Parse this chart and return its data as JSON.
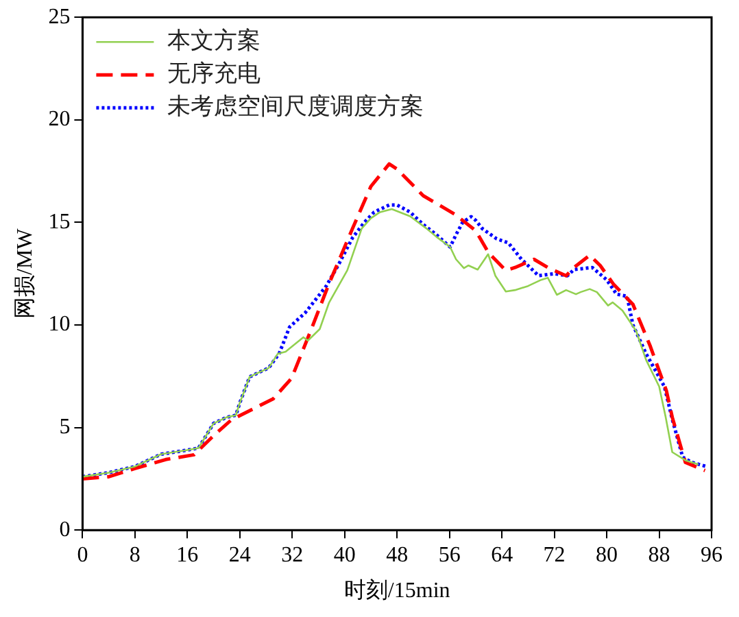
{
  "chart_data": {
    "type": "line",
    "xlabel": "时刻/15min",
    "ylabel": "网损/MW",
    "xlim": [
      0,
      96
    ],
    "xticks": [
      0,
      8,
      16,
      24,
      32,
      40,
      48,
      56,
      64,
      72,
      80,
      88,
      96
    ],
    "ylim": [
      0,
      25
    ],
    "yticks": [
      0,
      5,
      10,
      15,
      20,
      25
    ],
    "grid": false,
    "legend": "top left",
    "marker": "none",
    "series": [
      {
        "name": "本文方案",
        "color": "#92d050",
        "line_style": "solid",
        "x": [
          0,
          4,
          8,
          12,
          16,
          17.7,
          20,
          22,
          23.4,
          24,
          25.5,
          27,
          28.4,
          29.8,
          31,
          33.7,
          34.4,
          36.2,
          37.6,
          40.4,
          42.6,
          44,
          45.4,
          47.2,
          50,
          52.5,
          54,
          56.1,
          57,
          58.2,
          58.9,
          60.3,
          61.9,
          63,
          64.6,
          66,
          68,
          70,
          71,
          72.4,
          73.8,
          75.3,
          76,
          77.4,
          78.5,
          80.2,
          80.9,
          82.4,
          84.5,
          86,
          88,
          89,
          90,
          92,
          94
        ],
        "values": [
          2.6,
          2.8,
          3.1,
          3.7,
          3.9,
          4.0,
          5.2,
          5.5,
          5.6,
          6.2,
          7.47,
          7.7,
          7.9,
          8.6,
          8.7,
          9.4,
          9.24,
          9.8,
          11.07,
          12.66,
          14.7,
          15.2,
          15.5,
          15.65,
          15.3,
          14.7,
          14.3,
          13.8,
          13.2,
          12.77,
          12.9,
          12.7,
          13.45,
          12.4,
          11.63,
          11.7,
          11.9,
          12.2,
          12.3,
          11.47,
          11.7,
          11.5,
          11.6,
          11.75,
          11.6,
          10.95,
          11.1,
          10.7,
          9.7,
          8.3,
          7.0,
          5.5,
          3.8,
          3.4,
          3.2
        ]
      },
      {
        "name": "无序充电",
        "color": "#ff0000",
        "line_style": "dashed",
        "x": [
          0,
          4,
          8,
          12.7,
          17,
          20,
          22.7,
          26,
          29.1,
          31.9,
          34.8,
          37.6,
          41.2,
          44,
          46.8,
          48,
          52,
          56.8,
          60,
          62,
          64.6,
          66,
          68.9,
          71,
          73.8,
          75,
          77.4,
          79,
          81,
          84,
          86.6,
          89.1,
          90,
          92,
          95
        ],
        "values": [
          2.5,
          2.6,
          3.0,
          3.44,
          3.67,
          4.6,
          5.37,
          5.9,
          6.4,
          7.4,
          9.7,
          12.0,
          14.7,
          16.75,
          17.85,
          17.6,
          16.3,
          15.4,
          14.6,
          13.5,
          12.66,
          12.8,
          13.2,
          12.8,
          12.4,
          12.8,
          13.4,
          12.9,
          12.0,
          11.0,
          9.0,
          6.8,
          5.5,
          3.3,
          2.9
        ]
      },
      {
        "name": "未考虑空间尺度调度方案",
        "color": "#0000ff",
        "line_style": "dotted",
        "x": [
          0,
          4,
          8,
          12,
          16,
          17.7,
          20,
          22,
          23.4,
          24,
          25.5,
          27,
          28.4,
          30,
          31.6,
          34,
          37.2,
          39,
          41.2,
          43,
          44.5,
          46.8,
          48,
          50,
          52,
          54,
          56.1,
          57,
          58,
          59.3,
          60,
          61,
          63.2,
          65,
          67,
          69.6,
          72,
          74,
          75,
          77.8,
          80,
          81.5,
          83.1,
          84,
          86,
          88.8,
          90,
          91.6,
          93,
          95.2
        ],
        "values": [
          2.6,
          2.8,
          3.1,
          3.7,
          3.9,
          4.0,
          5.2,
          5.5,
          5.6,
          6.2,
          7.47,
          7.7,
          7.9,
          8.6,
          9.9,
          10.6,
          11.9,
          12.9,
          14.25,
          15.0,
          15.5,
          15.85,
          15.85,
          15.5,
          14.9,
          14.4,
          13.8,
          14.4,
          15.0,
          15.28,
          15.1,
          14.7,
          14.2,
          14.0,
          13.2,
          12.4,
          12.5,
          12.4,
          12.7,
          12.8,
          12.2,
          11.5,
          11.4,
          10.0,
          8.6,
          7.0,
          5.4,
          3.55,
          3.3,
          3.1
        ]
      }
    ]
  }
}
